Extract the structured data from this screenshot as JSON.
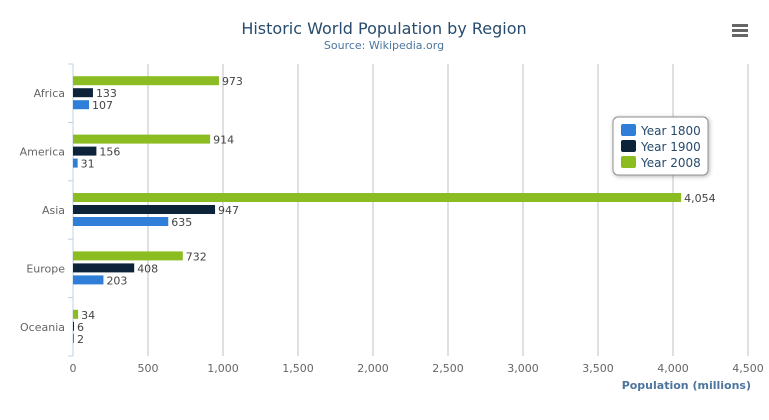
{
  "chart_data": {
    "type": "bar",
    "orientation": "horizontal",
    "title": "Historic World Population by Region",
    "subtitle": "Source: Wikipedia.org",
    "xlabel": "",
    "ylabel": "Population (millions)",
    "categories": [
      "Africa",
      "America",
      "Asia",
      "Europe",
      "Oceania"
    ],
    "series": [
      {
        "name": "Year 1800",
        "color": "#2f7ed8",
        "values": [
          107,
          31,
          635,
          203,
          2
        ]
      },
      {
        "name": "Year 1900",
        "color": "#0d233a",
        "values": [
          133,
          156,
          947,
          408,
          6
        ]
      },
      {
        "name": "Year 2008",
        "color": "#8bbc21",
        "values": [
          973,
          914,
          4054,
          732,
          34
        ]
      }
    ],
    "value_axis": {
      "min": 0,
      "max": 4500,
      "ticks": [
        0,
        500,
        1000,
        1500,
        2000,
        2500,
        3000,
        3500,
        4000,
        4500
      ]
    },
    "grid": true,
    "data_labels": true,
    "legend": "right"
  },
  "menu": {
    "icon": "hamburger-menu-icon"
  }
}
